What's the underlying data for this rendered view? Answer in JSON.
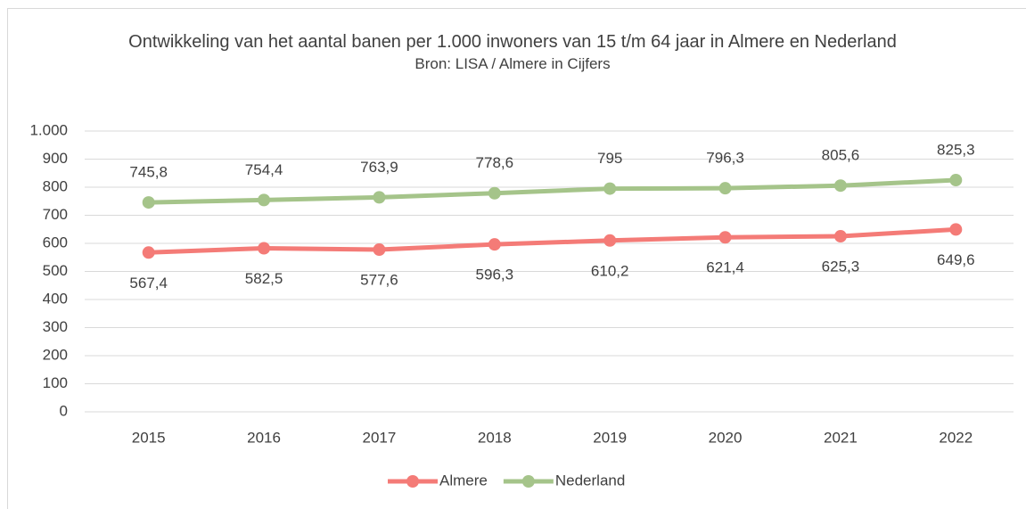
{
  "chart_data": {
    "type": "line",
    "title": "Ontwikkeling van het aantal banen per 1.000 inwoners van 15 t/m 64 jaar in Almere en Nederland",
    "subtitle": "Bron: LISA / Almere in Cijfers",
    "categories": [
      "2015",
      "2016",
      "2017",
      "2018",
      "2019",
      "2020",
      "2021",
      "2022"
    ],
    "series": [
      {
        "name": "Almere",
        "color": "#f47b77",
        "label_position": "below",
        "values": [
          567.4,
          582.5,
          577.6,
          596.3,
          610.2,
          621.4,
          625.3,
          649.6
        ],
        "value_labels": [
          "567,4",
          "582,5",
          "577,6",
          "596,3",
          "610,2",
          "621,4",
          "625,3",
          "649,6"
        ]
      },
      {
        "name": "Nederland",
        "color": "#a5c48a",
        "label_position": "above",
        "values": [
          745.8,
          754.4,
          763.9,
          778.6,
          795,
          796.3,
          805.6,
          825.3
        ],
        "value_labels": [
          "745,8",
          "754,4",
          "763,9",
          "778,6",
          "795",
          "796,3",
          "805,6",
          "825,3"
        ]
      }
    ],
    "ylim": [
      0,
      1000
    ],
    "yticks": [
      0,
      100,
      200,
      300,
      400,
      500,
      600,
      700,
      800,
      900,
      {
        "value": 1000,
        "label": "1.000"
      }
    ],
    "grid": true,
    "legend": "bottom"
  }
}
